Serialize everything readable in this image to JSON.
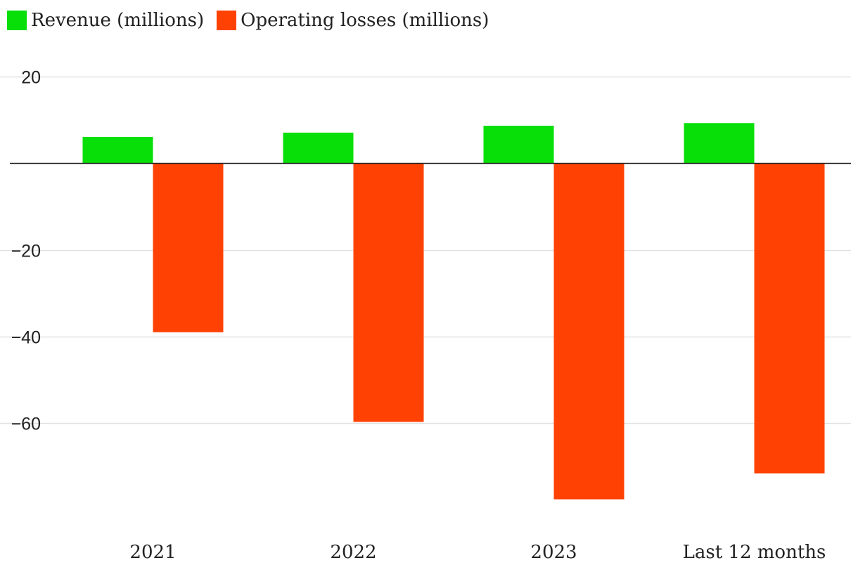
{
  "chart_data": {
    "type": "bar",
    "categories": [
      "2021",
      "2022",
      "2023",
      "Last 12 months"
    ],
    "series": [
      {
        "name": "Revenue (millions)",
        "color": "#08df08",
        "values": [
          6.1,
          7.1,
          8.7,
          9.3
        ]
      },
      {
        "name": "Operating losses (millions)",
        "color": "#ff4203",
        "values": [
          -39.0,
          -59.7,
          -77.6,
          -71.6
        ]
      }
    ],
    "yticks": [
      20,
      -20,
      -40,
      -60
    ],
    "ytick_labels": [
      "20",
      "−20",
      "−40",
      "−60"
    ],
    "ylim": [
      -85,
      24
    ],
    "grid": true,
    "legend": "top-left"
  }
}
